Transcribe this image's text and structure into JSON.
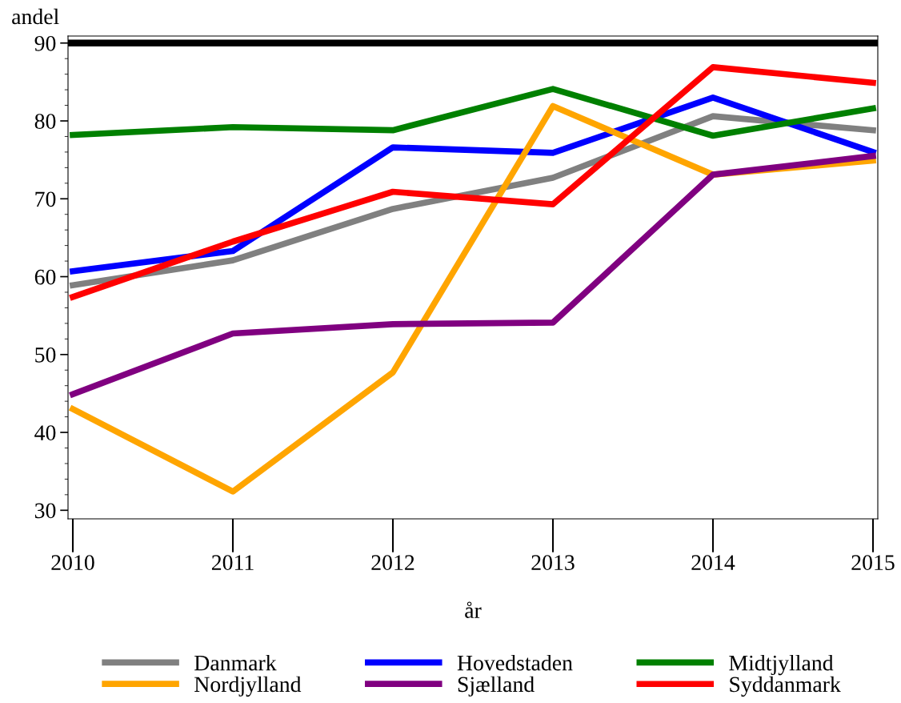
{
  "chart_data": {
    "type": "line",
    "xlabel": "år",
    "ylabel": "andel",
    "x": [
      2010,
      2011,
      2012,
      2013,
      2014,
      2015
    ],
    "xlim": [
      2009.97,
      2015.03
    ],
    "xticks": [
      2010,
      2011,
      2012,
      2013,
      2014,
      2015
    ],
    "ylim": [
      28.9,
      90.9
    ],
    "yticks": [
      30,
      40,
      50,
      60,
      70,
      80,
      90
    ],
    "series": [
      {
        "name": "Danmark",
        "color": "#808080",
        "values": [
          58.9,
          62.1,
          68.7,
          72.7,
          80.6,
          78.8
        ]
      },
      {
        "name": "Hovedstaden",
        "color": "#0000ff",
        "values": [
          60.7,
          63.3,
          76.6,
          75.9,
          83.0,
          76.0
        ]
      },
      {
        "name": "Midtjylland",
        "color": "#008000",
        "values": [
          78.2,
          79.2,
          78.8,
          84.1,
          78.1,
          81.6
        ]
      },
      {
        "name": "Nordjylland",
        "color": "#ffa500",
        "values": [
          43.0,
          32.4,
          47.7,
          81.9,
          73.1,
          74.9
        ]
      },
      {
        "name": "Sjælland",
        "color": "#800080",
        "values": [
          44.9,
          52.7,
          53.9,
          54.1,
          73.1,
          75.5
        ]
      },
      {
        "name": "Syddanmark",
        "color": "#ff0000",
        "values": [
          57.4,
          64.5,
          70.9,
          69.3,
          86.9,
          84.9
        ]
      }
    ],
    "ref_lines": [
      {
        "axis": "y",
        "value": 90,
        "color": "#000000",
        "line_style": "solid"
      }
    ],
    "grid": false,
    "legend": "bottom",
    "marker": "none",
    "line_style": "solid"
  }
}
